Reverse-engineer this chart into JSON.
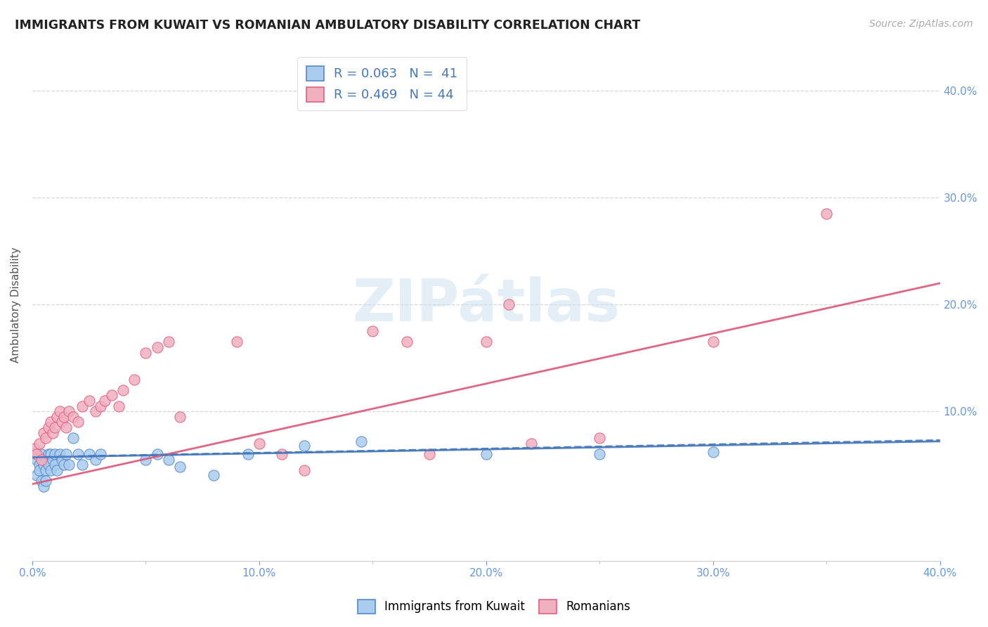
{
  "title": "IMMIGRANTS FROM KUWAIT VS ROMANIAN AMBULATORY DISABILITY CORRELATION CHART",
  "source": "Source: ZipAtlas.com",
  "ylabel": "Ambulatory Disability",
  "xlim": [
    0.0,
    0.4
  ],
  "ylim": [
    -0.04,
    0.44
  ],
  "xtick_vals": [
    0.0,
    0.1,
    0.2,
    0.3,
    0.4
  ],
  "ytick_vals": [
    0.1,
    0.2,
    0.3,
    0.4
  ],
  "legend_r_kuwait": "R = 0.063",
  "legend_n_kuwait": "N =  41",
  "legend_r_romanian": "R = 0.469",
  "legend_n_romanian": "N = 44",
  "color_kuwait_fill": "#aaccee",
  "color_romanian_fill": "#f0b0c0",
  "color_kuwait_edge": "#5588cc",
  "color_romanian_edge": "#e06080",
  "color_kuwait_line": "#4477bb",
  "color_romanian_line": "#dd5577",
  "color_axis_tick": "#6699dd",
  "kuwait_scatter_x": [
    0.001,
    0.002,
    0.002,
    0.003,
    0.003,
    0.004,
    0.004,
    0.005,
    0.005,
    0.006,
    0.006,
    0.007,
    0.007,
    0.008,
    0.008,
    0.009,
    0.01,
    0.01,
    0.011,
    0.012,
    0.013,
    0.014,
    0.015,
    0.016,
    0.018,
    0.02,
    0.022,
    0.025,
    0.028,
    0.03,
    0.05,
    0.055,
    0.06,
    0.065,
    0.08,
    0.095,
    0.12,
    0.145,
    0.2,
    0.25,
    0.3
  ],
  "kuwait_scatter_y": [
    0.06,
    0.04,
    0.055,
    0.05,
    0.045,
    0.035,
    0.06,
    0.05,
    0.03,
    0.045,
    0.035,
    0.05,
    0.06,
    0.045,
    0.06,
    0.055,
    0.06,
    0.05,
    0.045,
    0.06,
    0.055,
    0.05,
    0.06,
    0.05,
    0.075,
    0.06,
    0.05,
    0.06,
    0.055,
    0.06,
    0.055,
    0.06,
    0.055,
    0.048,
    0.04,
    0.06,
    0.068,
    0.072,
    0.06,
    0.06,
    0.062
  ],
  "romanian_scatter_x": [
    0.001,
    0.002,
    0.003,
    0.004,
    0.005,
    0.006,
    0.007,
    0.008,
    0.009,
    0.01,
    0.011,
    0.012,
    0.013,
    0.014,
    0.015,
    0.016,
    0.018,
    0.02,
    0.022,
    0.025,
    0.028,
    0.03,
    0.032,
    0.035,
    0.038,
    0.04,
    0.045,
    0.05,
    0.055,
    0.06,
    0.065,
    0.09,
    0.1,
    0.11,
    0.12,
    0.15,
    0.165,
    0.175,
    0.2,
    0.21,
    0.22,
    0.25,
    0.3,
    0.35
  ],
  "romanian_scatter_y": [
    0.065,
    0.06,
    0.07,
    0.055,
    0.08,
    0.075,
    0.085,
    0.09,
    0.08,
    0.085,
    0.095,
    0.1,
    0.09,
    0.095,
    0.085,
    0.1,
    0.095,
    0.09,
    0.105,
    0.11,
    0.1,
    0.105,
    0.11,
    0.115,
    0.105,
    0.12,
    0.13,
    0.155,
    0.16,
    0.165,
    0.095,
    0.165,
    0.07,
    0.06,
    0.045,
    0.175,
    0.165,
    0.06,
    0.165,
    0.2,
    0.07,
    0.075,
    0.165,
    0.285
  ],
  "kuwait_line_x": [
    0.0,
    0.4
  ],
  "kuwait_line_y": [
    0.057,
    0.072
  ],
  "romanian_line_x": [
    0.0,
    0.4
  ],
  "romanian_line_y": [
    0.032,
    0.22
  ]
}
